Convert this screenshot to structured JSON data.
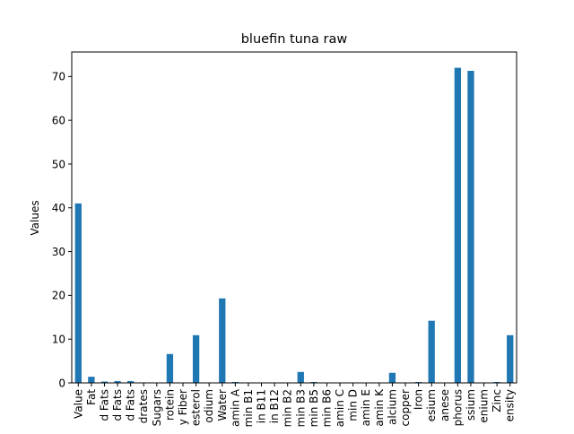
{
  "chart_data": {
    "type": "bar",
    "title": "bluefin tuna raw",
    "xlabel": "",
    "ylabel": "Values",
    "ylim": [
      0,
      75.6
    ],
    "yticks": [
      0,
      10,
      20,
      30,
      40,
      50,
      60,
      70
    ],
    "grid": false,
    "legend": "none",
    "bar_color": "#1f77b4",
    "categories": [
      "Value",
      "Fat",
      "d Fats",
      "d Fats",
      "d Fats",
      "drates",
      "Sugars",
      "rotein",
      "y Fiber",
      "esterol",
      "odium",
      "Water",
      "amin A",
      "min B1",
      "in B11",
      "in B12",
      "min B2",
      "min B3",
      "min B5",
      "min B6",
      "amin C",
      "min D",
      "amin E",
      "amin K",
      "alcium",
      "copper",
      "Iron",
      "esium",
      "anese",
      "phorus",
      "ssium",
      "enium",
      "Zinc",
      "ensity"
    ],
    "values": [
      41.0,
      1.4,
      0.3,
      0.4,
      0.4,
      0.0,
      0.0,
      6.6,
      0.0,
      10.9,
      0.0,
      19.3,
      0.2,
      0.0,
      0.0,
      0.0,
      0.0,
      2.5,
      0.2,
      0.0,
      0.0,
      0.0,
      0.1,
      0.0,
      2.3,
      0.0,
      0.2,
      14.2,
      0.0,
      72.0,
      71.3,
      0.0,
      0.2,
      10.9
    ]
  }
}
